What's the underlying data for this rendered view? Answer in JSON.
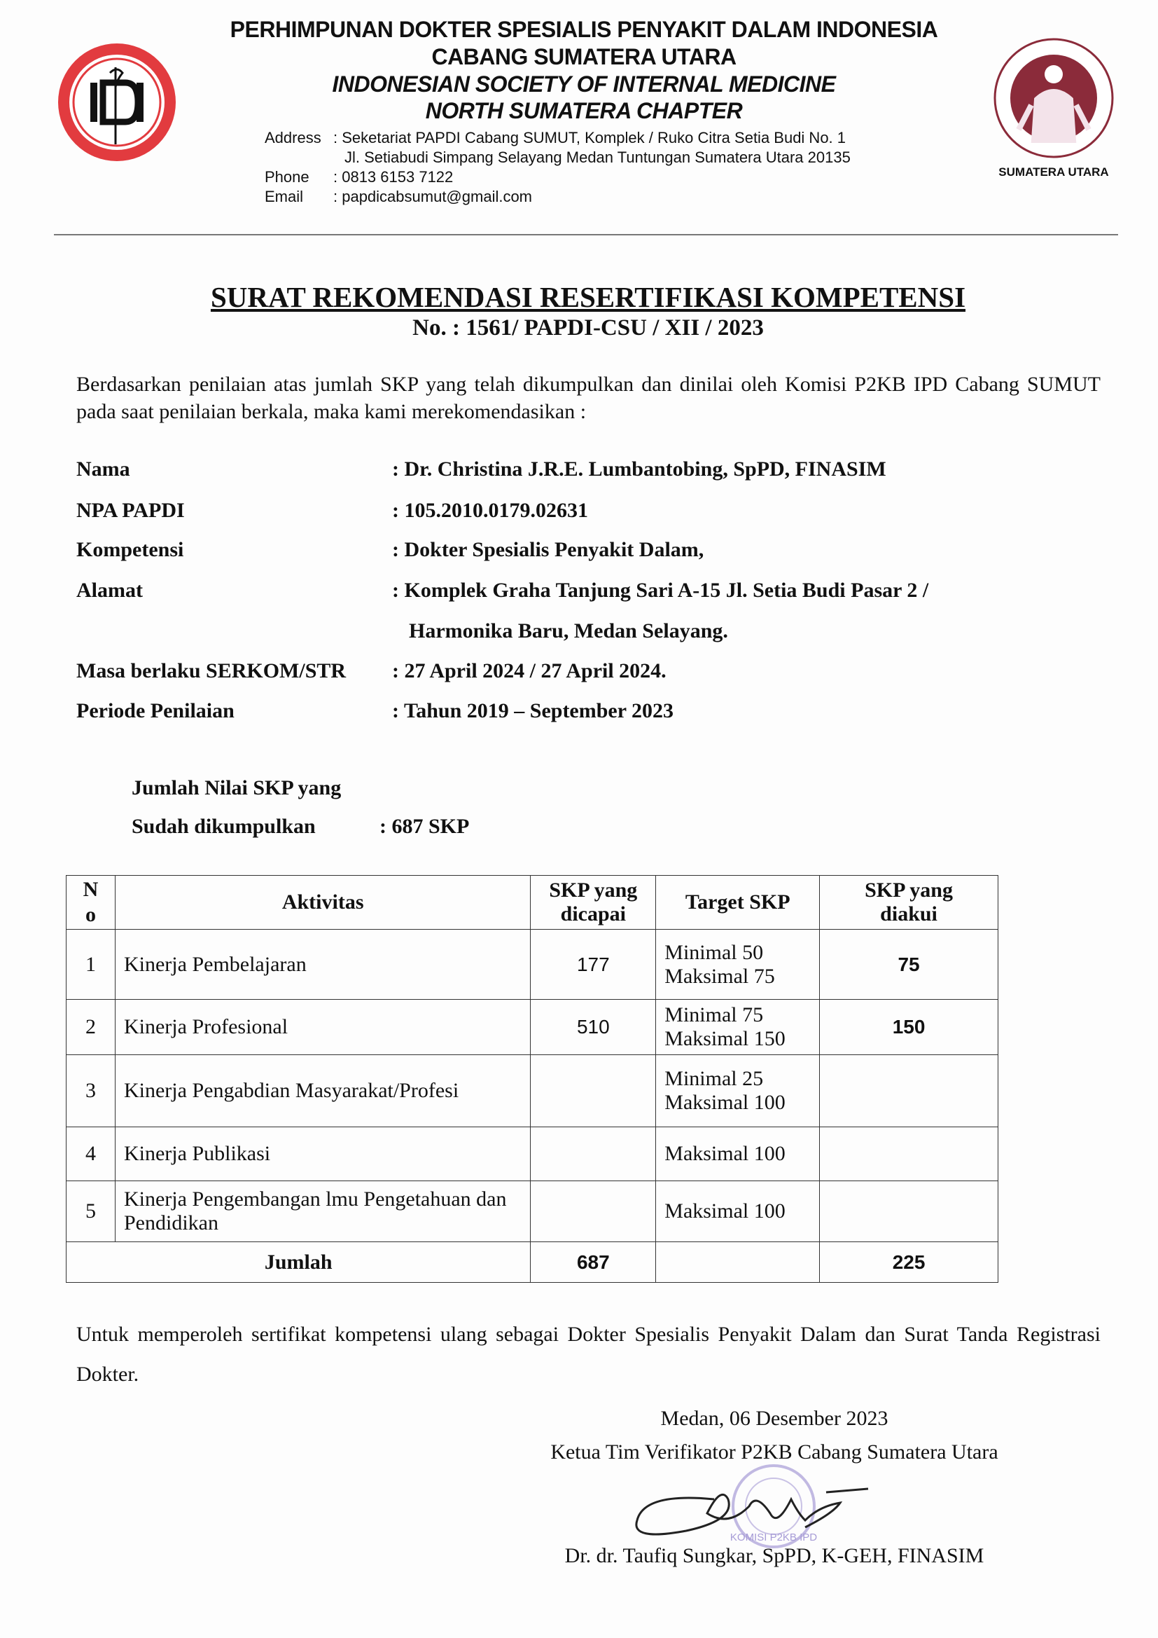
{
  "letterhead": {
    "org_line1": "PERHIMPUNAN DOKTER SPESIALIS PENYAKIT DALAM INDONESIA",
    "org_line2": "CABANG SUMATERA UTARA",
    "org_line3": "INDONESIAN SOCIETY OF INTERNAL MEDICINE",
    "org_line4": "NORTH SUMATERA CHAPTER",
    "address_label": "Address",
    "address_line1": ": Seketariat PAPDI Cabang SUMUT, Komplek / Ruko Citra Setia Budi No. 1",
    "address_line2": "Jl. Setiabudi Simpang Selayang Medan Tuntungan Sumatera Utara 20135",
    "phone_label": "Phone",
    "phone": ": 0813 6153 7122",
    "email_label": "Email",
    "email": ": papdicabsumut@gmail.com",
    "right_logo_caption": "SUMATERA UTARA",
    "left_logo_text": "IDI",
    "right_logo_ring_text": "PERHIMPUNAN DOKTER SPESIALIS PENYAKIT DALAM INDONESIA",
    "logo_color_left": "#e23b3f",
    "logo_color_right": "#8b2b3a"
  },
  "title": "SURAT REKOMENDASI RESERTIFIKASI KOMPETENSI",
  "number": "No. : 1561/ PAPDI-CSU / XII / 2023",
  "intro": "Berdasarkan penilaian atas jumlah SKP yang telah dikumpulkan dan dinilai oleh Komisi P2KB IPD Cabang SUMUT pada saat penilaian berkala, maka kami merekomendasikan :",
  "fields": [
    {
      "label": "Nama",
      "value": ": Dr. Christina J.R.E. Lumbantobing, SpPD, FINASIM"
    },
    {
      "label": "NPA PAPDI",
      "value": ": 105.2010.0179.02631"
    },
    {
      "label": "Kompetensi",
      "value": ": Dokter Spesialis Penyakit Dalam,"
    },
    {
      "label": "Alamat",
      "value": ": Komplek Graha Tanjung Sari A-15 Jl. Setia Budi Pasar 2 /",
      "value2": "Harmonika Baru, Medan Selayang."
    },
    {
      "label": "Masa berlaku SERKOM/STR",
      "value": ": 27 April 2024 / 27 April 2024."
    },
    {
      "label": "Periode Penilaian",
      "value": ": Tahun 2019 – September 2023"
    }
  ],
  "skp_total": {
    "label1": "Jumlah Nilai SKP yang",
    "label2": "Sudah dikumpulkan",
    "value": ": 687 SKP"
  },
  "table": {
    "headers": {
      "no": "N o",
      "aktivitas": "Aktivitas",
      "dicapai": "SKP yang dicapai",
      "target": "Target SKP",
      "diakui": "SKP yang diakui"
    },
    "rows": [
      {
        "no": "1",
        "aktivitas": "Kinerja Pembelajaran",
        "dicapai": "177",
        "target1": "Minimal 50",
        "target2": "Maksimal 75",
        "diakui": "75"
      },
      {
        "no": "2",
        "aktivitas": "Kinerja Profesional",
        "dicapai": "510",
        "target1": "Minimal 75",
        "target2": "Maksimal 150",
        "diakui": "150"
      },
      {
        "no": "3",
        "aktivitas": "Kinerja Pengabdian Masyarakat/Profesi",
        "dicapai": "",
        "target1": "Minimal 25",
        "target2": "Maksimal 100",
        "diakui": ""
      },
      {
        "no": "4",
        "aktivitas": "Kinerja Publikasi",
        "dicapai": "",
        "target1": "Maksimal 100",
        "target2": "",
        "diakui": ""
      },
      {
        "no": "5",
        "aktivitas": "Kinerja Pengembangan lmu Pengetahuan dan Pendidikan",
        "dicapai": "",
        "target1": "Maksimal 100",
        "target2": "",
        "diakui": ""
      }
    ],
    "total": {
      "label": "Jumlah",
      "dicapai": "687",
      "target": "",
      "diakui": "225"
    }
  },
  "closing": "Untuk memperoleh sertifikat kompetensi ulang sebagai Dokter Spesialis Penyakit Dalam dan Surat Tanda Registrasi Dokter.",
  "signature": {
    "place_date": "Medan, 06 Desember 2023",
    "position": "Ketua Tim Verifikator P2KB Cabang Sumatera Utara",
    "name": "Dr. dr. Taufiq Sungkar, SpPD, K-GEH, FINASIM",
    "stamp_text": "KOMISI P2KB IPD",
    "stamp_color": "#a69bd6"
  }
}
